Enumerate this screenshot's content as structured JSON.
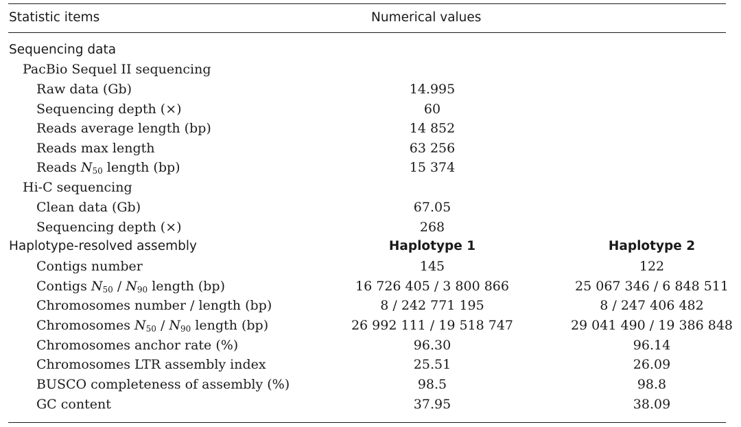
{
  "header": {
    "col_items": "Statistic items",
    "col_values": "Numerical values"
  },
  "sequencing": {
    "title": "Sequencing data",
    "pacbio": {
      "title": "PacBio Sequel II sequencing",
      "raw_data_label": "Raw data (Gb)",
      "raw_data_value": "14.995",
      "depth_label": "Sequencing depth (×)",
      "depth_value": "60",
      "avg_len_label": "Reads average length (bp)",
      "avg_len_value": "14 852",
      "max_len_label": "Reads max length",
      "max_len_value": "63 256",
      "n50_label_pre": "Reads ",
      "n50_label_N": "N",
      "n50_label_sub": "50",
      "n50_label_post": " length (bp)",
      "n50_value": "15 374"
    },
    "hic": {
      "title": "Hi-C sequencing",
      "clean_label": "Clean data (Gb)",
      "clean_value": "67.05",
      "depth_label": "Sequencing depth (×)",
      "depth_value": "268"
    }
  },
  "assembly": {
    "title": "Haplotype-resolved assembly",
    "hap1": "Haplotype 1",
    "hap2": "Haplotype 2",
    "contigs_number_label": "Contigs number",
    "contigs_number": [
      "145",
      "122"
    ],
    "contigs_n_label": {
      "pre": "Contigs ",
      "N": "N",
      "s1": "50",
      "mid": " / ",
      "N2": "N",
      "s2": "90",
      "post": " length (bp)"
    },
    "contigs_n": [
      "16 726 405 / 3 800 866",
      "25 067 346 / 6 848 511"
    ],
    "chrom_num_label": "Chromosomes number / length (bp)",
    "chrom_num": [
      "8 / 242 771 195",
      "8 / 247 406 482"
    ],
    "chrom_n_label": {
      "pre": "Chromosomes ",
      "N": "N",
      "s1": "50",
      "mid": " / ",
      "N2": "N",
      "s2": "90",
      "post": " length (bp)"
    },
    "chrom_n": [
      "26 992 111 / 19 518 747",
      "29 041 490 / 19 386 848"
    ],
    "anchor_label": "Chromosomes anchor rate (%)",
    "anchor": [
      "96.30",
      "96.14"
    ],
    "ltr_label": "Chromosomes LTR assembly index",
    "ltr": [
      "25.51",
      "26.09"
    ],
    "busco_label": "BUSCO completeness of assembly (%)",
    "busco": [
      "98.5",
      "98.8"
    ],
    "gc_label": "GC content",
    "gc": [
      "37.95",
      "38.09"
    ]
  }
}
